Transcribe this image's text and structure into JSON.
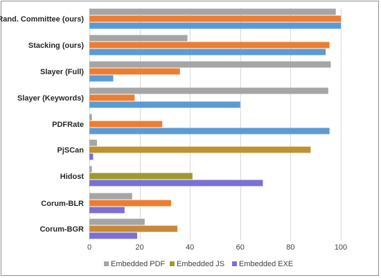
{
  "chart_data": {
    "type": "bar",
    "orientation": "horizontal",
    "categories": [
      "Rand. Committee (ours)",
      "Stacking (ours)",
      "Slayer (Full)",
      "Slayer (Keywords)",
      "PDFRate",
      "PjSCan",
      "Hidost",
      "Corum-BLR",
      "Corum-BGR"
    ],
    "series": [
      {
        "name": "Embedded PDF",
        "color": "#a5a5a5",
        "values": [
          98,
          39,
          96,
          95,
          1,
          3,
          1,
          17,
          22
        ]
      },
      {
        "name": "Embedded JS",
        "color": "#ed7d31",
        "legend_color": "#9e9a2d",
        "values": [
          100,
          95.5,
          36,
          18,
          29,
          88,
          41,
          32.5,
          35
        ],
        "value_colors": [
          "#ed7d31",
          "#ed7d31",
          "#ed7d31",
          "#ed7d31",
          "#ed7d31",
          "#bf9133",
          "#9e9a2d",
          "#ed7d31",
          "#c8873a"
        ]
      },
      {
        "name": "Embedded EXE",
        "color": "#5b9bd5",
        "legend_color": "#7a70d6",
        "values": [
          100,
          94,
          9.5,
          60,
          95.5,
          1.5,
          69,
          14,
          19
        ],
        "value_colors": [
          "#5b9bd5",
          "#5b9bd5",
          "#5b9bd5",
          "#5b9bd5",
          "#5b9bd5",
          "#7a70d6",
          "#7a70d6",
          "#7a70d6",
          "#7a70d6"
        ]
      }
    ],
    "xlim": [
      0,
      100
    ],
    "xticks": [
      0,
      20,
      40,
      60,
      80,
      100
    ],
    "grid": "vertical major gridlines",
    "legend": "bottom",
    "title": "",
    "xlabel": "",
    "ylabel": ""
  }
}
